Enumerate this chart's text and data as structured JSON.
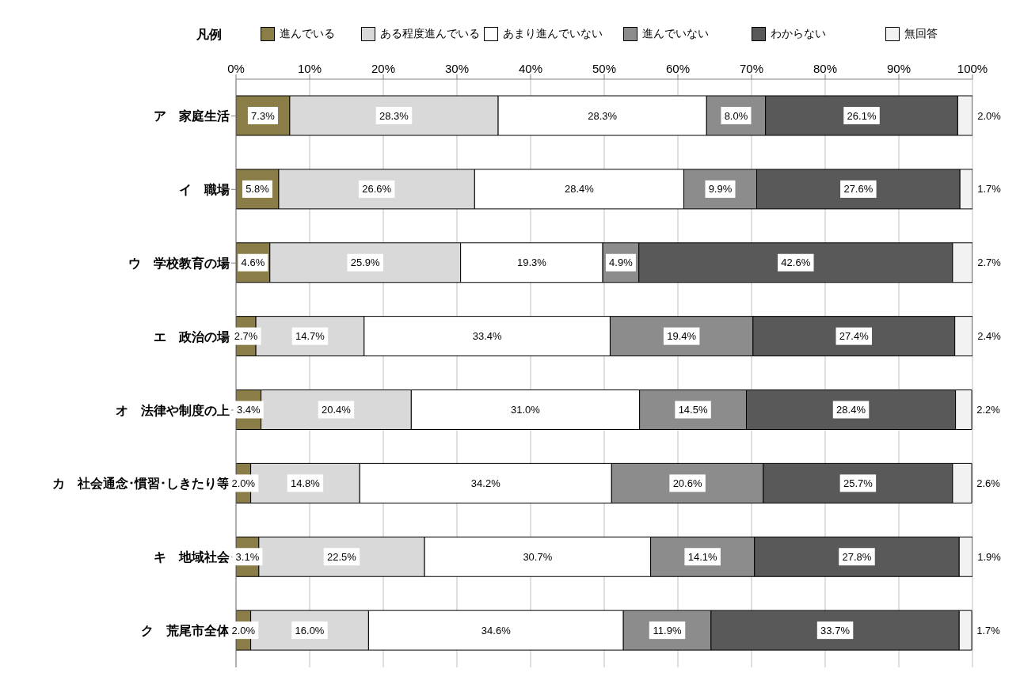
{
  "chart_data": {
    "type": "bar",
    "orientation": "horizontal",
    "stacked": true,
    "legend": "top",
    "legend_title": "凡例",
    "grid": "x",
    "categories": [
      "ア　家庭生活",
      "イ　職場",
      "ウ　学校教育の場",
      "エ　政治の場",
      "オ　法律や制度の上",
      "カ　社会通念･慣習･しきたり等",
      "キ　地域社会",
      "ク　荒尾市全体"
    ],
    "xlim": [
      0,
      100
    ],
    "xticks": [
      {
        "value": 0,
        "label": "0%"
      },
      {
        "value": 10,
        "label": "10%"
      },
      {
        "value": 20,
        "label": "20%"
      },
      {
        "value": 30,
        "label": "30%"
      },
      {
        "value": 40,
        "label": "40%"
      },
      {
        "value": 50,
        "label": "50%"
      },
      {
        "value": 60,
        "label": "60%"
      },
      {
        "value": 70,
        "label": "70%"
      },
      {
        "value": 80,
        "label": "80%"
      },
      {
        "value": 90,
        "label": "90%"
      },
      {
        "value": 100,
        "label": "100%"
      }
    ],
    "series": [
      {
        "name": "進んでいる",
        "color": "#8b7d47",
        "values": [
          7.3,
          5.8,
          4.6,
          2.7,
          3.4,
          2.0,
          3.1,
          2.0
        ],
        "value_labels": [
          "7.3%",
          "5.8%",
          "4.6%",
          "2.7%",
          "3.4%",
          "2.0%",
          "3.1%",
          "2.0%"
        ]
      },
      {
        "name": "ある程度進んでいる",
        "color": "#d9d9d9",
        "values": [
          28.3,
          26.6,
          25.9,
          14.7,
          20.4,
          14.8,
          22.5,
          16.0
        ],
        "value_labels": [
          "28.3%",
          "26.6%",
          "25.9%",
          "14.7%",
          "20.4%",
          "14.8%",
          "22.5%",
          "16.0%"
        ]
      },
      {
        "name": "あまり進んでいない",
        "color": "#ffffff",
        "values": [
          28.3,
          28.4,
          19.3,
          33.4,
          31.0,
          34.2,
          30.7,
          34.6
        ],
        "value_labels": [
          "28.3%",
          "28.4%",
          "19.3%",
          "33.4%",
          "31.0%",
          "34.2%",
          "30.7%",
          "34.6%"
        ]
      },
      {
        "name": "進んでいない",
        "color": "#8c8c8c",
        "values": [
          8.0,
          9.9,
          4.9,
          19.4,
          14.5,
          20.6,
          14.1,
          11.9
        ],
        "value_labels": [
          "8.0%",
          "9.9%",
          "4.9%",
          "19.4%",
          "14.5%",
          "20.6%",
          "14.1%",
          "11.9%"
        ]
      },
      {
        "name": "わからない",
        "color": "#595959",
        "values": [
          26.1,
          27.6,
          42.6,
          27.4,
          28.4,
          25.7,
          27.8,
          33.7
        ],
        "value_labels": [
          "26.1%",
          "27.6%",
          "42.6%",
          "27.4%",
          "28.4%",
          "25.7%",
          "27.8%",
          "33.7%"
        ]
      },
      {
        "name": "無回答",
        "color": "#f2f2f2",
        "values": [
          2.0,
          1.7,
          2.7,
          2.4,
          2.2,
          2.6,
          1.9,
          1.7
        ],
        "value_labels": [
          "2.0%",
          "1.7%",
          "2.7%",
          "2.4%",
          "2.2%",
          "2.6%",
          "1.9%",
          "1.7%"
        ]
      }
    ]
  }
}
